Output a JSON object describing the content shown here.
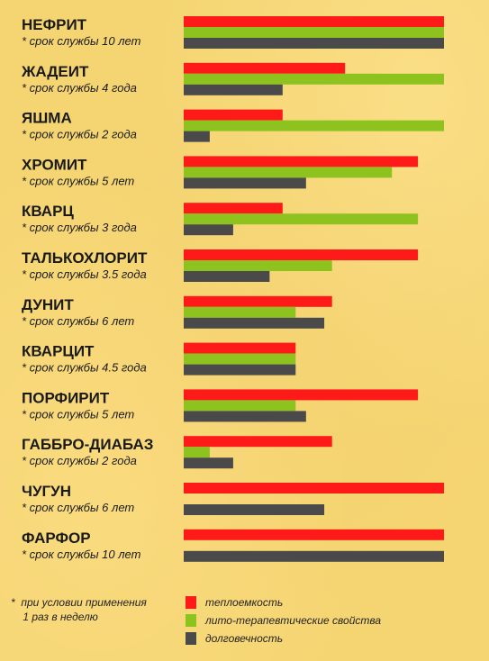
{
  "chart_data": {
    "type": "bar",
    "orientation": "horizontal",
    "xlim": [
      0,
      100
    ],
    "grid": false,
    "legend_position": "bottom",
    "categories": [
      {
        "name": "НЕФРИТ",
        "note": "* срок службы 10 лет"
      },
      {
        "name": "ЖАДЕИТ",
        "note": "* срок службы 4 года"
      },
      {
        "name": "ЯШМА",
        "note": "* срок службы  2 года"
      },
      {
        "name": "ХРОМИТ",
        "note": "* срок службы  5 лет"
      },
      {
        "name": "КВАРЦ",
        "note": "* срок службы  3 года"
      },
      {
        "name": "ТАЛЬКОХЛОРИТ",
        "note": "* срок службы  3.5 года"
      },
      {
        "name": "ДУНИТ",
        "note": "* срок службы 6 лет"
      },
      {
        "name": "КВАРЦИТ",
        "note": "* срок службы 4.5 года"
      },
      {
        "name": "ПОРФИРИТ",
        "note": "* срок службы 5 лет"
      },
      {
        "name": "ГАББРО-ДИАБАЗ",
        "note": "* срок службы  2 года"
      },
      {
        "name": "ЧУГУН",
        "note": "* срок службы  6 лет"
      },
      {
        "name": "ФАРФОР",
        "note": "* срок службы 10 лет"
      }
    ],
    "series": [
      {
        "name": "теплоемкость",
        "color": "#ff1a1a",
        "values": [
          100,
          62,
          38,
          90,
          38,
          90,
          57,
          43,
          90,
          57,
          100,
          100
        ]
      },
      {
        "name": "лито-терапевтические свойства",
        "color": "#8dc21f",
        "values": [
          100,
          100,
          100,
          80,
          90,
          57,
          43,
          43,
          43,
          10,
          null,
          null
        ]
      },
      {
        "name": "долговечность",
        "color": "#4a4a4a",
        "values": [
          100,
          38,
          10,
          47,
          19,
          33,
          54,
          43,
          47,
          19,
          54,
          100
        ]
      }
    ]
  },
  "footnote": "*  при условии применения\n    1 раз в неделю"
}
